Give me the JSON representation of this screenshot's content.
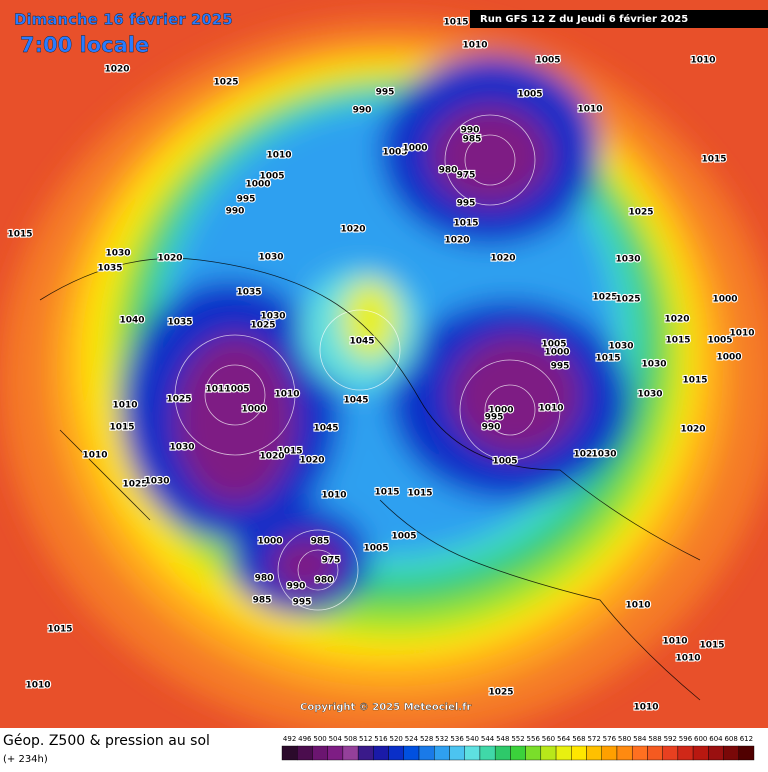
{
  "header": {
    "date": "Dimanche 16 février 2025",
    "time": "7:00 locale",
    "run": "Run GFS 12 Z du Jeudi 6 février 2025",
    "copyright": "Copyright © 2025 Meteociel.fr"
  },
  "footer": {
    "title": "Géop. Z500 & pression au sol",
    "lead": "(+ 234h)"
  },
  "scale": {
    "labels": [
      492,
      496,
      500,
      504,
      508,
      512,
      516,
      520,
      524,
      528,
      532,
      536,
      540,
      544,
      548,
      552,
      556,
      560,
      564,
      568,
      572,
      576,
      580,
      584,
      588,
      592,
      596,
      600,
      604,
      608,
      612
    ],
    "colors": [
      "#2b0a2b",
      "#4b0d4e",
      "#6b1570",
      "#7e1d84",
      "#94409a",
      "#3a1a8a",
      "#1a1aa8",
      "#0a2fc8",
      "#0050e0",
      "#1a7ae8",
      "#2fa0f0",
      "#4cc4f0",
      "#5ee0e0",
      "#40d8a8",
      "#2ec96a",
      "#3bd23b",
      "#7ade2a",
      "#b8e81a",
      "#e8f010",
      "#ffe600",
      "#ffc000",
      "#ffa000",
      "#ff8a10",
      "#ff7020",
      "#f55a20",
      "#e84020",
      "#d02818",
      "#b81810",
      "#9a1010",
      "#7a0808",
      "#500000"
    ]
  },
  "isobar_labels": [
    1015,
    1010,
    1005,
    1010,
    1020,
    1025,
    995,
    990,
    1005,
    1010,
    990,
    985,
    1005,
    1000,
    1010,
    980,
    975,
    1015,
    1005,
    1000,
    995,
    990,
    995,
    1025,
    1015,
    1020,
    1020,
    1015,
    1030,
    1020,
    1030,
    1020,
    1030,
    1035,
    1035,
    1025,
    1025,
    1000,
    1030,
    1040,
    1035,
    1025,
    1020,
    1045,
    1005,
    1000,
    1015,
    1005,
    1010,
    1030,
    1015,
    995,
    1000,
    1030,
    1010,
    1005,
    1015,
    1030,
    1010,
    1025,
    1045,
    1010,
    1000,
    1000,
    1010,
    1015,
    995,
    990,
    1045,
    1020,
    1030,
    1015,
    1020,
    1020,
    1021,
    1030,
    1010,
    1005,
    1025,
    1030,
    1010,
    1015,
    1015,
    1000,
    985,
    1005,
    1005,
    975,
    980,
    980,
    990,
    985,
    995,
    1010,
    1015,
    1010,
    1015,
    1010,
    1010,
    1025,
    1010
  ]
}
